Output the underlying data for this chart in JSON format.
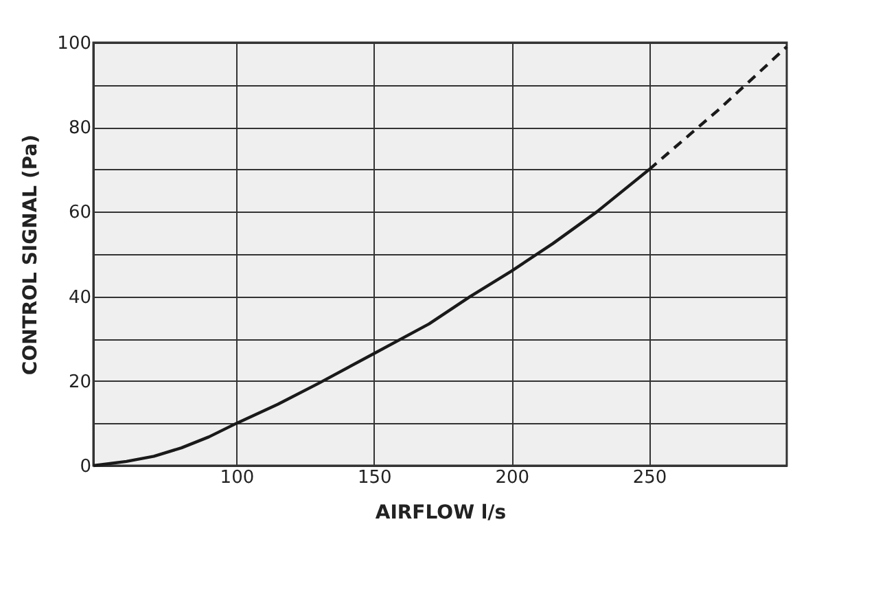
{
  "chart_data": {
    "type": "line",
    "xlabel": "AIRFLOW l/s",
    "ylabel": "CONTROL SIGNAL (Pa)",
    "xlim": [
      48,
      300
    ],
    "ylim": [
      0,
      100
    ],
    "xticks": [
      100,
      150,
      200,
      250
    ],
    "yticks": [
      0,
      {
        "value": 10,
        "label": null
      },
      20,
      {
        "value": 30,
        "label": null
      },
      40,
      {
        "value": 50,
        "label": null
      },
      60,
      {
        "value": 70,
        "label": null
      },
      80,
      {
        "value": 90,
        "label": null
      },
      100
    ],
    "grid": true,
    "marker": "none",
    "series": [
      {
        "color": "#1a1a1a",
        "line_style": "solid",
        "x": [
          48,
          60,
          70,
          80,
          90,
          100,
          115,
          130,
          150,
          170,
          185,
          200,
          215,
          231,
          250
        ],
        "values": [
          0,
          1,
          2.2,
          4.2,
          6.8,
          10,
          14.5,
          19.5,
          26.5,
          33.5,
          40,
          46,
          52.5,
          60,
          70
        ]
      },
      {
        "color": "#1a1a1a",
        "line_style": "dashed",
        "x": [
          250,
          275,
          300
        ],
        "values": [
          70,
          84,
          99
        ]
      }
    ]
  }
}
